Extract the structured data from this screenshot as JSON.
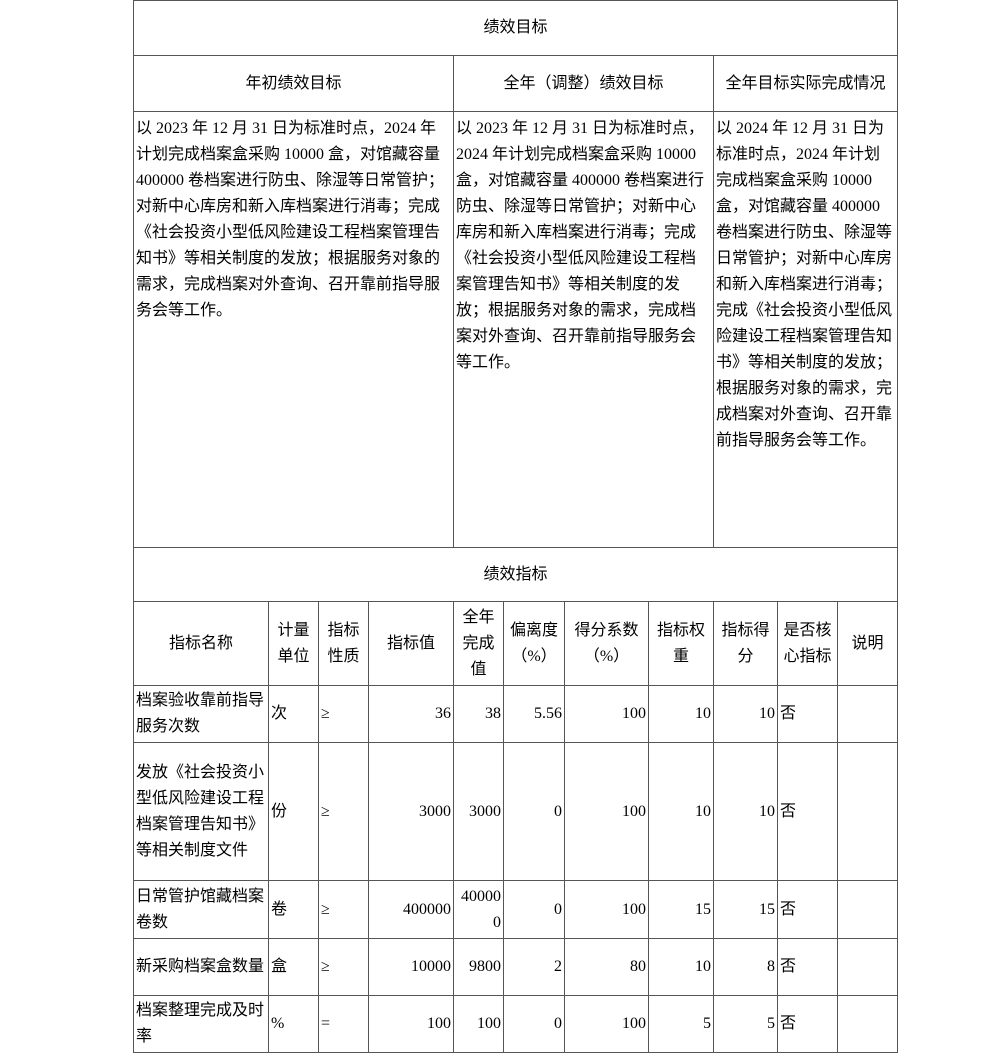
{
  "section1_title": "绩效目标",
  "goal_headers": [
    "年初绩效目标",
    "全年（调整）绩效目标",
    "全年目标实际完成情况"
  ],
  "goal_texts": [
    "以 2023 年 12 月 31 日为标准时点，2024 年计划完成档案盒采购 10000 盒，对馆藏容量 400000 卷档案进行防虫、除湿等日常管护；对新中心库房和新入库档案进行消毒；完成《社会投资小型低风险建设工程档案管理告知书》等相关制度的发放；根据服务对象的需求，完成档案对外查询、召开靠前指导服务会等工作。",
    "以 2023 年 12 月 31 日为标准时点，2024 年计划完成档案盒采购 10000 盒，对馆藏容量 400000 卷档案进行防虫、除湿等日常管护；对新中心库房和新入库档案进行消毒；完成《社会投资小型低风险建设工程档案管理告知书》等相关制度的发放；根据服务对象的需求，完成档案对外查询、召开靠前指导服务会等工作。",
    "以 2024 年 12 月 31 日为标准时点，2024 年计划完成档案盒采购 10000 盒，对馆藏容量 400000 卷档案进行防虫、除湿等日常管护；对新中心库房和新入库档案进行消毒；完成《社会投资小型低风险建设工程档案管理告知书》等相关制度的发放；根据服务对象的需求，完成档案对外查询、召开靠前指导服务会等工作。"
  ],
  "section2_title": "绩效指标",
  "columns": [
    "指标名称",
    "计量单位",
    "指标性质",
    "指标值",
    "全年完成值",
    "偏离度（%）",
    "得分系数（%）",
    "指标权重",
    "指标得分",
    "是否核心指标",
    "说明"
  ],
  "rows": [
    [
      "档案验收靠前指导服务次数",
      "次",
      "≥",
      "36",
      "38",
      "5.56",
      "100",
      "10",
      "10",
      "否",
      ""
    ],
    [
      "发放《社会投资小型低风险建设工程档案管理告知书》等相关制度文件",
      "份",
      "≥",
      "3000",
      "3000",
      "0",
      "100",
      "10",
      "10",
      "否",
      ""
    ],
    [
      "日常管护馆藏档案卷数",
      "卷",
      "≥",
      "400000",
      "400000",
      "0",
      "100",
      "15",
      "15",
      "否",
      ""
    ],
    [
      "新采购档案盒数量",
      "盒",
      "≥",
      "10000",
      "9800",
      "2",
      "80",
      "10",
      "8",
      "否",
      ""
    ],
    [
      "档案整理完成及时率",
      "%",
      "=",
      "100",
      "100",
      "0",
      "100",
      "5",
      "5",
      "否",
      ""
    ]
  ]
}
